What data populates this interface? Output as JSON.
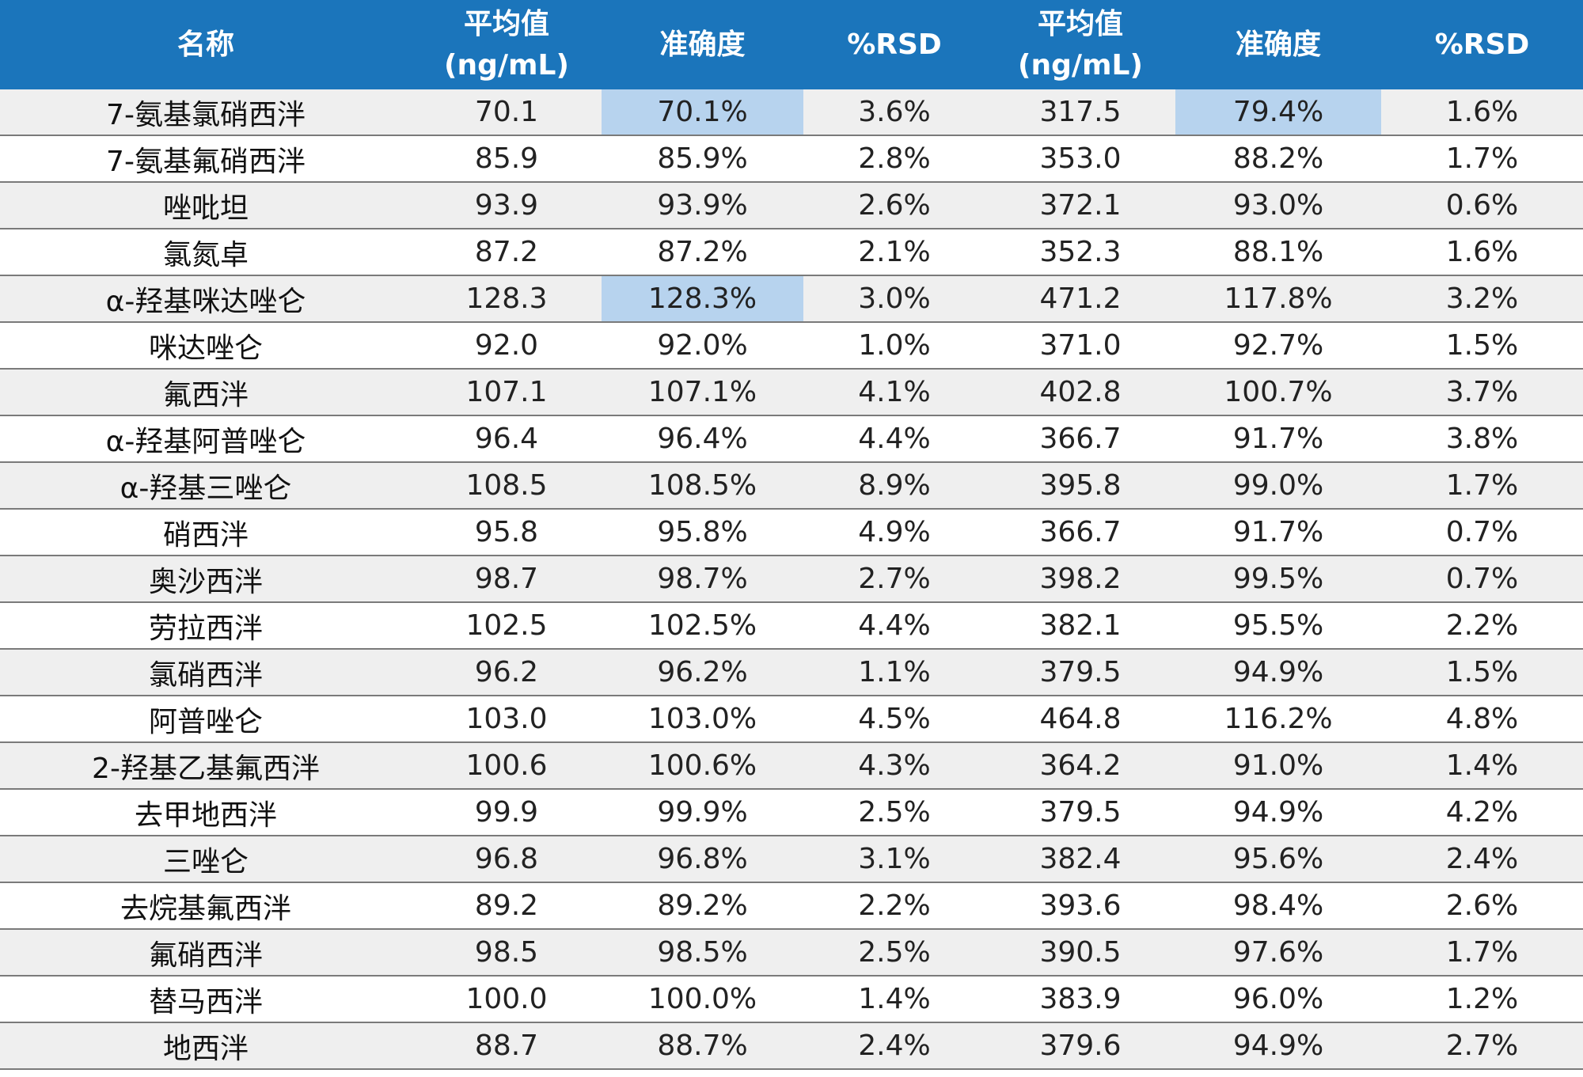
{
  "table": {
    "headers": [
      [
        "名称"
      ],
      [
        "平均值",
        "(ng/mL)"
      ],
      [
        "准确度"
      ],
      [
        "%RSD"
      ],
      [
        "平均值",
        "(ng/mL)"
      ],
      [
        "准确度"
      ],
      [
        "%RSD"
      ]
    ],
    "highlight_color": "#b7d3ee",
    "header_color": "#1b75bb",
    "rows": [
      {
        "cells": [
          "7-氨基氯硝西泮",
          "70.1",
          "70.1%",
          "3.6%",
          "317.5",
          "79.4%",
          "1.6%"
        ],
        "highlight": [
          2,
          5
        ]
      },
      {
        "cells": [
          "7-氨基氟硝西泮",
          "85.9",
          "85.9%",
          "2.8%",
          "353.0",
          "88.2%",
          "1.7%"
        ],
        "highlight": []
      },
      {
        "cells": [
          "唑吡坦",
          "93.9",
          "93.9%",
          "2.6%",
          "372.1",
          "93.0%",
          "0.6%"
        ],
        "highlight": []
      },
      {
        "cells": [
          "氯氮卓",
          "87.2",
          "87.2%",
          "2.1%",
          "352.3",
          "88.1%",
          "1.6%"
        ],
        "highlight": []
      },
      {
        "cells": [
          "α-羟基咪达唑仑",
          "128.3",
          "128.3%",
          "3.0%",
          "471.2",
          "117.8%",
          "3.2%"
        ],
        "highlight": [
          2
        ]
      },
      {
        "cells": [
          "咪达唑仑",
          "92.0",
          "92.0%",
          "1.0%",
          "371.0",
          "92.7%",
          "1.5%"
        ],
        "highlight": []
      },
      {
        "cells": [
          "氟西泮",
          "107.1",
          "107.1%",
          "4.1%",
          "402.8",
          "100.7%",
          "3.7%"
        ],
        "highlight": []
      },
      {
        "cells": [
          "α-羟基阿普唑仑",
          "96.4",
          "96.4%",
          "4.4%",
          "366.7",
          "91.7%",
          "3.8%"
        ],
        "highlight": []
      },
      {
        "cells": [
          "α-羟基三唑仑",
          "108.5",
          "108.5%",
          "8.9%",
          "395.8",
          "99.0%",
          "1.7%"
        ],
        "highlight": []
      },
      {
        "cells": [
          "硝西泮",
          "95.8",
          "95.8%",
          "4.9%",
          "366.7",
          "91.7%",
          "0.7%"
        ],
        "highlight": []
      },
      {
        "cells": [
          "奥沙西泮",
          "98.7",
          "98.7%",
          "2.7%",
          "398.2",
          "99.5%",
          "0.7%"
        ],
        "highlight": []
      },
      {
        "cells": [
          "劳拉西泮",
          "102.5",
          "102.5%",
          "4.4%",
          "382.1",
          "95.5%",
          "2.2%"
        ],
        "highlight": []
      },
      {
        "cells": [
          "氯硝西泮",
          "96.2",
          "96.2%",
          "1.1%",
          "379.5",
          "94.9%",
          "1.5%"
        ],
        "highlight": []
      },
      {
        "cells": [
          "阿普唑仑",
          "103.0",
          "103.0%",
          "4.5%",
          "464.8",
          "116.2%",
          "4.8%"
        ],
        "highlight": []
      },
      {
        "cells": [
          "2-羟基乙基氟西泮",
          "100.6",
          "100.6%",
          "4.3%",
          "364.2",
          "91.0%",
          "1.4%"
        ],
        "highlight": []
      },
      {
        "cells": [
          "去甲地西泮",
          "99.9",
          "99.9%",
          "2.5%",
          "379.5",
          "94.9%",
          "4.2%"
        ],
        "highlight": []
      },
      {
        "cells": [
          "三唑仑",
          "96.8",
          "96.8%",
          "3.1%",
          "382.4",
          "95.6%",
          "2.4%"
        ],
        "highlight": []
      },
      {
        "cells": [
          "去烷基氟西泮",
          "89.2",
          "89.2%",
          "2.2%",
          "393.6",
          "98.4%",
          "2.6%"
        ],
        "highlight": []
      },
      {
        "cells": [
          "氟硝西泮",
          "98.5",
          "98.5%",
          "2.5%",
          "390.5",
          "97.6%",
          "1.7%"
        ],
        "highlight": []
      },
      {
        "cells": [
          "替马西泮",
          "100.0",
          "100.0%",
          "1.4%",
          "383.9",
          "96.0%",
          "1.2%"
        ],
        "highlight": []
      },
      {
        "cells": [
          "地西泮",
          "88.7",
          "88.7%",
          "2.4%",
          "379.6",
          "94.9%",
          "2.7%"
        ],
        "highlight": []
      }
    ]
  }
}
